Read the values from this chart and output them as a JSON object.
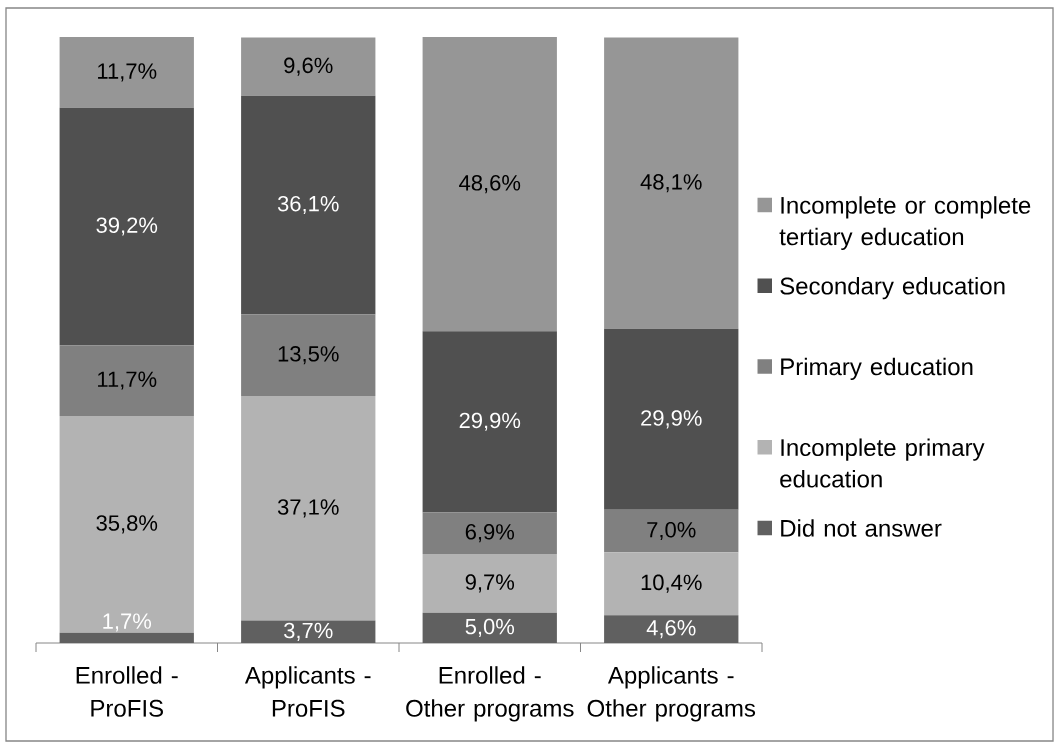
{
  "chart_data": {
    "type": "bar",
    "stacked": true,
    "legend": "right",
    "categories": [
      "Enrolled - ProFIS",
      "Applicants - ProFIS",
      "Enrolled - Other programs",
      "Applicants - Other programs"
    ],
    "series": [
      {
        "name": "Did not answer",
        "color": "#606060",
        "values": [
          1.7,
          3.7,
          5.0,
          4.6
        ],
        "value_labels": [
          "1,7%",
          "3,7%",
          "5,0%",
          "4,6%"
        ]
      },
      {
        "name": "Incomplete primary education",
        "color": "#b3b3b3",
        "values": [
          35.8,
          37.1,
          9.7,
          10.4
        ],
        "value_labels": [
          "35,8%",
          "37,1%",
          "9,7%",
          "10,4%"
        ]
      },
      {
        "name": "Primary education",
        "color": "#808080",
        "values": [
          11.7,
          13.5,
          6.9,
          7.0
        ],
        "value_labels": [
          "11,7%",
          "13,5%",
          "6,9%",
          "7,0%"
        ]
      },
      {
        "name": "Secondary education",
        "color": "#505050",
        "values": [
          39.2,
          36.1,
          29.9,
          29.9
        ],
        "value_labels": [
          "39,2%",
          "36,1%",
          "29,9%",
          "29,9%"
        ]
      },
      {
        "name": "Incomplete or complete tertiary education",
        "color": "#969696",
        "values": [
          11.7,
          9.6,
          48.6,
          48.1
        ],
        "value_labels": [
          "11,7%",
          "9,6%",
          "48,6%",
          "48,1%"
        ]
      }
    ]
  }
}
